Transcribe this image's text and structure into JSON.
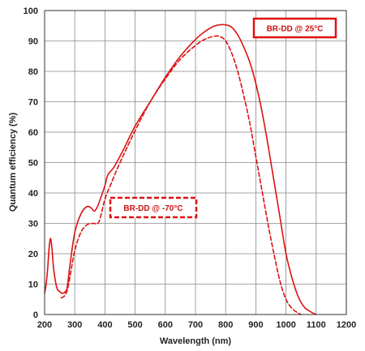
{
  "chart_data": {
    "type": "line",
    "xlabel": "Wavelength (nm)",
    "ylabel": "Quantum efficiency (%)",
    "xlim": [
      200,
      1200
    ],
    "ylim": [
      0,
      100
    ],
    "x_ticks": [
      200,
      300,
      400,
      500,
      600,
      700,
      800,
      900,
      1000,
      1100,
      1200
    ],
    "y_ticks": [
      0,
      10,
      20,
      30,
      40,
      50,
      60,
      70,
      80,
      90,
      100
    ],
    "grid": true,
    "color": "#dd1111",
    "series": [
      {
        "name": "BR-DD @ 25°C",
        "style": "solid",
        "x": [
          200,
          205,
          210,
          215,
          220,
          225,
          230,
          240,
          250,
          260,
          268,
          275,
          285,
          300,
          320,
          340,
          355,
          365,
          375,
          390,
          400,
          410,
          430,
          460,
          500,
          550,
          600,
          650,
          700,
          730,
          760,
          780,
          800,
          820,
          840,
          860,
          880,
          900,
          920,
          940,
          960,
          980,
          1000,
          1020,
          1040,
          1060,
          1080,
          1095,
          1100
        ],
        "y": [
          7,
          10,
          15,
          22,
          25,
          21,
          15,
          9,
          7.5,
          7,
          7.5,
          9,
          17,
          27,
          33,
          35.5,
          35,
          34,
          35.5,
          39.5,
          42.5,
          46,
          48.5,
          54,
          62,
          70,
          78,
          85,
          90.5,
          93,
          94.8,
          95.3,
          95.3,
          94.5,
          92,
          88,
          83,
          76,
          67,
          56,
          44,
          32,
          20,
          12,
          6,
          2.5,
          1,
          0.2,
          0
        ]
      },
      {
        "name": "BR-DD @ -70°C",
        "style": "dashed",
        "x": [
          255,
          265,
          275,
          285,
          300,
          320,
          340,
          360,
          380,
          400,
          420,
          450,
          500,
          550,
          600,
          650,
          700,
          730,
          760,
          780,
          800,
          820,
          840,
          860,
          880,
          900,
          920,
          940,
          960,
          980,
          1000,
          1020,
          1040,
          1050
        ],
        "y": [
          5.5,
          6,
          8,
          13,
          21,
          27,
          29.5,
          30,
          30.5,
          38,
          43,
          50,
          60.5,
          70,
          77.5,
          84,
          88.5,
          90.5,
          91.5,
          91.5,
          90,
          86,
          80,
          72,
          63,
          52,
          41,
          30,
          20,
          11,
          5,
          2,
          0.5,
          0
        ]
      }
    ],
    "legend": [
      {
        "label": "BR-DD @ 25°C",
        "style": "solid"
      },
      {
        "label": "BR-DD @ -70°C",
        "style": "dashed"
      }
    ]
  }
}
